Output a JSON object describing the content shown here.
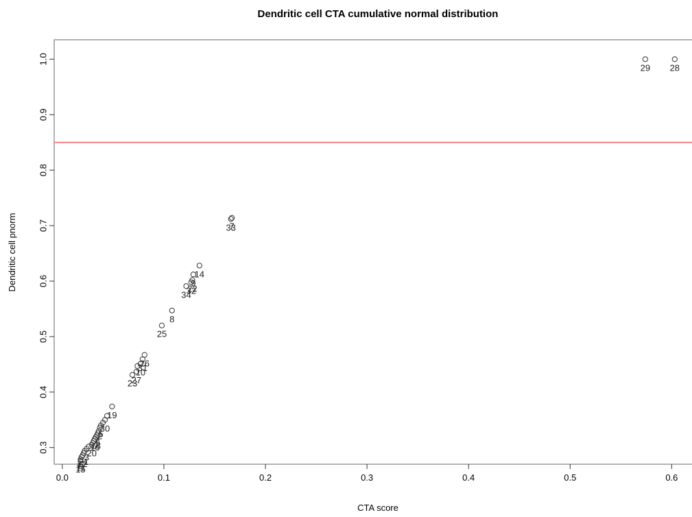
{
  "chart_data": {
    "type": "scatter",
    "title": "Dendritic cell CTA cumulative normal distribution",
    "xlabel": "CTA score",
    "ylabel": "Dendritic cell pnorm",
    "xlim": [
      -0.008,
      0.62
    ],
    "ylim": [
      0.27,
      1.035
    ],
    "xticks": [
      "0.0",
      "0.1",
      "0.2",
      "0.3",
      "0.4",
      "0.5",
      "0.6"
    ],
    "xtick_values": [
      0,
      0.1,
      0.2,
      0.3,
      0.4,
      0.5,
      0.6
    ],
    "yticks": [
      "0.3",
      "0.4",
      "0.5",
      "0.6",
      "0.7",
      "0.8",
      "0.9",
      "1.0"
    ],
    "ytick_values": [
      0.3,
      0.4,
      0.5,
      0.6,
      0.7,
      0.8,
      0.9,
      1.0
    ],
    "threshold": {
      "y": 0.85,
      "color": "#f08080"
    },
    "marker_color": "#333333",
    "points": [
      {
        "x": 0.603,
        "y": 1.0,
        "label": "28"
      },
      {
        "x": 0.574,
        "y": 1.0,
        "label": "29"
      },
      {
        "x": 0.167,
        "y": 0.714,
        "label": "7"
      },
      {
        "x": 0.166,
        "y": 0.712,
        "label": "33"
      },
      {
        "x": 0.135,
        "y": 0.628,
        "label": "14"
      },
      {
        "x": 0.129,
        "y": 0.612,
        "label": "9"
      },
      {
        "x": 0.128,
        "y": 0.602,
        "label": "22"
      },
      {
        "x": 0.127,
        "y": 0.598,
        "label": "32"
      },
      {
        "x": 0.122,
        "y": 0.591,
        "label": "34"
      },
      {
        "x": 0.108,
        "y": 0.547,
        "label": "8"
      },
      {
        "x": 0.098,
        "y": 0.52,
        "label": "25"
      },
      {
        "x": 0.081,
        "y": 0.467,
        "label": "26"
      },
      {
        "x": 0.079,
        "y": 0.459,
        "label": "31"
      },
      {
        "x": 0.077,
        "y": 0.451,
        "label": "10"
      },
      {
        "x": 0.074,
        "y": 0.447,
        "label": ""
      },
      {
        "x": 0.073,
        "y": 0.437,
        "label": "27"
      },
      {
        "x": 0.069,
        "y": 0.431,
        "label": "23"
      },
      {
        "x": 0.049,
        "y": 0.374,
        "label": "19"
      },
      {
        "x": 0.044,
        "y": 0.357,
        "label": ""
      },
      {
        "x": 0.042,
        "y": 0.35,
        "label": "30"
      },
      {
        "x": 0.04,
        "y": 0.345,
        "label": ""
      },
      {
        "x": 0.038,
        "y": 0.34,
        "label": "5"
      },
      {
        "x": 0.037,
        "y": 0.336,
        "label": "2"
      },
      {
        "x": 0.036,
        "y": 0.33,
        "label": ""
      },
      {
        "x": 0.035,
        "y": 0.326,
        "label": "4"
      },
      {
        "x": 0.034,
        "y": 0.322,
        "label": "1"
      },
      {
        "x": 0.033,
        "y": 0.319,
        "label": "18"
      },
      {
        "x": 0.032,
        "y": 0.316,
        "label": "16"
      },
      {
        "x": 0.031,
        "y": 0.312,
        "label": ""
      },
      {
        "x": 0.03,
        "y": 0.308,
        "label": ""
      },
      {
        "x": 0.029,
        "y": 0.305,
        "label": "20"
      },
      {
        "x": 0.026,
        "y": 0.302,
        "label": ""
      },
      {
        "x": 0.024,
        "y": 0.298,
        "label": "3"
      },
      {
        "x": 0.022,
        "y": 0.294,
        "label": ""
      },
      {
        "x": 0.021,
        "y": 0.29,
        "label": "21"
      },
      {
        "x": 0.02,
        "y": 0.286,
        "label": "12"
      },
      {
        "x": 0.019,
        "y": 0.283,
        "label": "17"
      },
      {
        "x": 0.018,
        "y": 0.279,
        "label": "11"
      },
      {
        "x": 0.018,
        "y": 0.276,
        "label": "15"
      }
    ]
  }
}
